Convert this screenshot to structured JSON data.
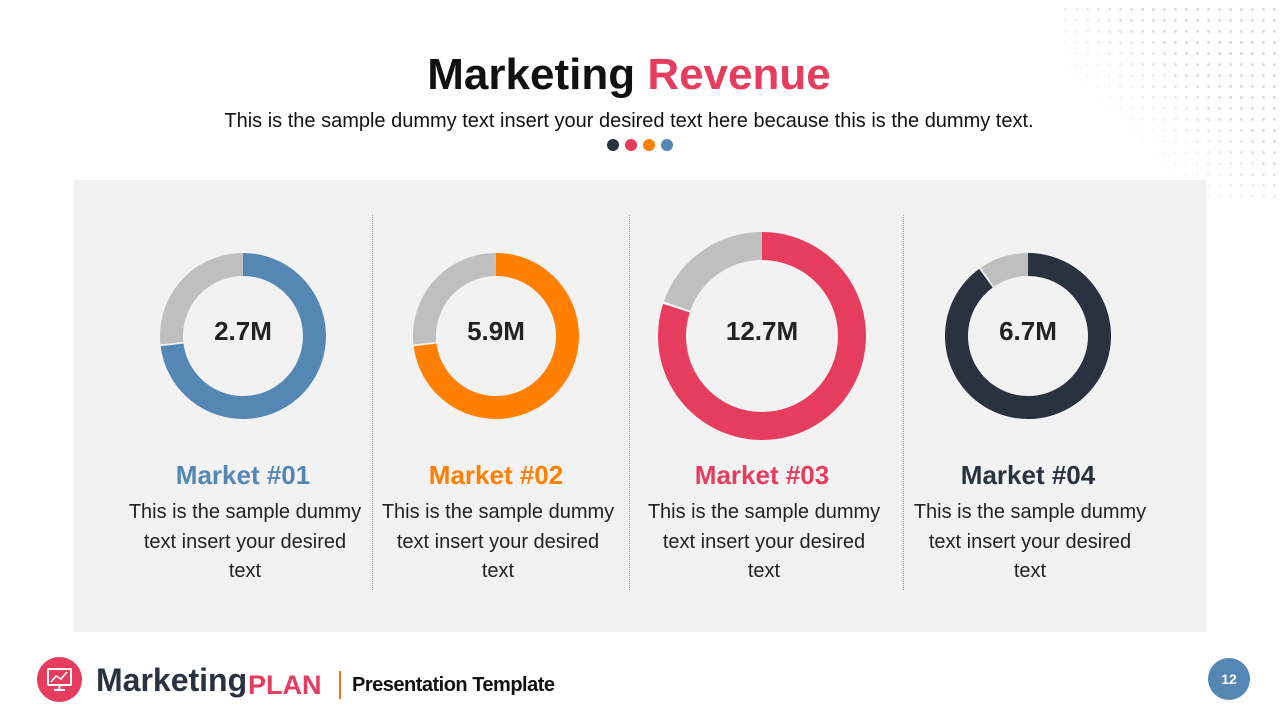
{
  "header": {
    "title_part1": "Marketing",
    "title_part2": "Revenue",
    "subtitle": "This is the sample dummy  text insert your desired text here because this is the dummy  text.",
    "dot_colors": [
      "#2a3240",
      "#e63c5e",
      "#ff7f00",
      "#5587b5"
    ]
  },
  "chart_data": {
    "type": "pie",
    "variant": "donut",
    "remainder_color": "#bfbfbf",
    "series": [
      {
        "name": "Market #01",
        "label": "2.7M",
        "fraction": 0.73,
        "color": "#5587b5",
        "description": "This is the sample dummy  text insert your desired text"
      },
      {
        "name": "Market #02",
        "label": "5.9M",
        "fraction": 0.73,
        "color": "#ff7f00",
        "description": "This is the sample dummy  text insert your desired text"
      },
      {
        "name": "Market #03",
        "label": "12.7M",
        "fraction": 0.8,
        "color": "#e63c5e",
        "description": "This is the sample dummy  text insert your desired text"
      },
      {
        "name": "Market #04",
        "label": "6.7M",
        "fraction": 0.9,
        "color": "#2a3240",
        "description": "This is the sample dummy  text insert your desired text"
      }
    ]
  },
  "footer": {
    "brand1": "Marketing",
    "brand2": "PLAN",
    "tagline": "Presentation Template",
    "page_number": "12",
    "logo_icon": "monitor-chart-icon"
  }
}
